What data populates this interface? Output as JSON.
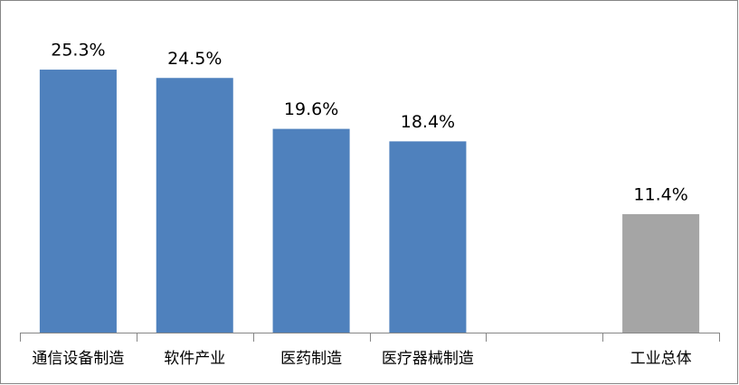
{
  "chart_data": {
    "type": "bar",
    "categories": [
      "通信设备制造",
      "软件产业",
      "医药制造",
      "医疗器械制造",
      null,
      "工业总体"
    ],
    "values": [
      25.3,
      24.5,
      19.6,
      18.4,
      null,
      11.4
    ],
    "value_labels": [
      "25.3%",
      "24.5%",
      "19.6%",
      "18.4%",
      null,
      "11.4%"
    ],
    "colors": [
      "#4f81bd",
      "#4f81bd",
      "#4f81bd",
      "#4f81bd",
      null,
      "#a5a5a5"
    ],
    "ylim": [
      0,
      30
    ]
  }
}
